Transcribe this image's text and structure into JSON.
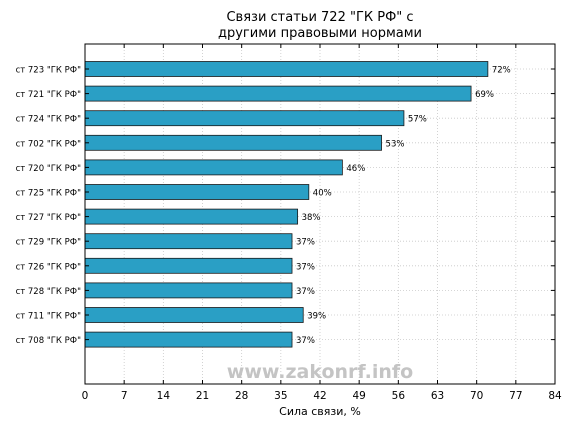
{
  "watermark": "www.zakonrf.info",
  "chart_data": {
    "type": "bar",
    "orientation": "horizontal",
    "title_lines": [
      "Связи статьи 722 \"ГК РФ\" с",
      "другими правовыми нормами"
    ],
    "xlabel": "Сила связи, %",
    "ylabel": "",
    "categories": [
      "ст 723 \"ГК РФ\"",
      "ст 721 \"ГК РФ\"",
      "ст 724 \"ГК РФ\"",
      "ст 702 \"ГК РФ\"",
      "ст 720 \"ГК РФ\"",
      "ст 725 \"ГК РФ\"",
      "ст 727 \"ГК РФ\"",
      "ст 729 \"ГК РФ\"",
      "ст 726 \"ГК РФ\"",
      "ст 728 \"ГК РФ\"",
      "ст 711 \"ГК РФ\"",
      "ст 708 \"ГК РФ\""
    ],
    "values": [
      72,
      69,
      57,
      53,
      46,
      40,
      38,
      37,
      37,
      37,
      39,
      37
    ],
    "value_labels": [
      "72%",
      "69%",
      "57%",
      "53%",
      "46%",
      "40%",
      "38%",
      "37%",
      "37%",
      "37%",
      "39%",
      "37%"
    ],
    "xlim": [
      0,
      84
    ],
    "xticks": [
      0,
      7,
      14,
      21,
      28,
      35,
      42,
      49,
      56,
      63,
      70,
      77,
      84
    ],
    "bar_color": "#2a9fc5",
    "bar_edge_color": "#1a1a1a",
    "grid": true
  }
}
